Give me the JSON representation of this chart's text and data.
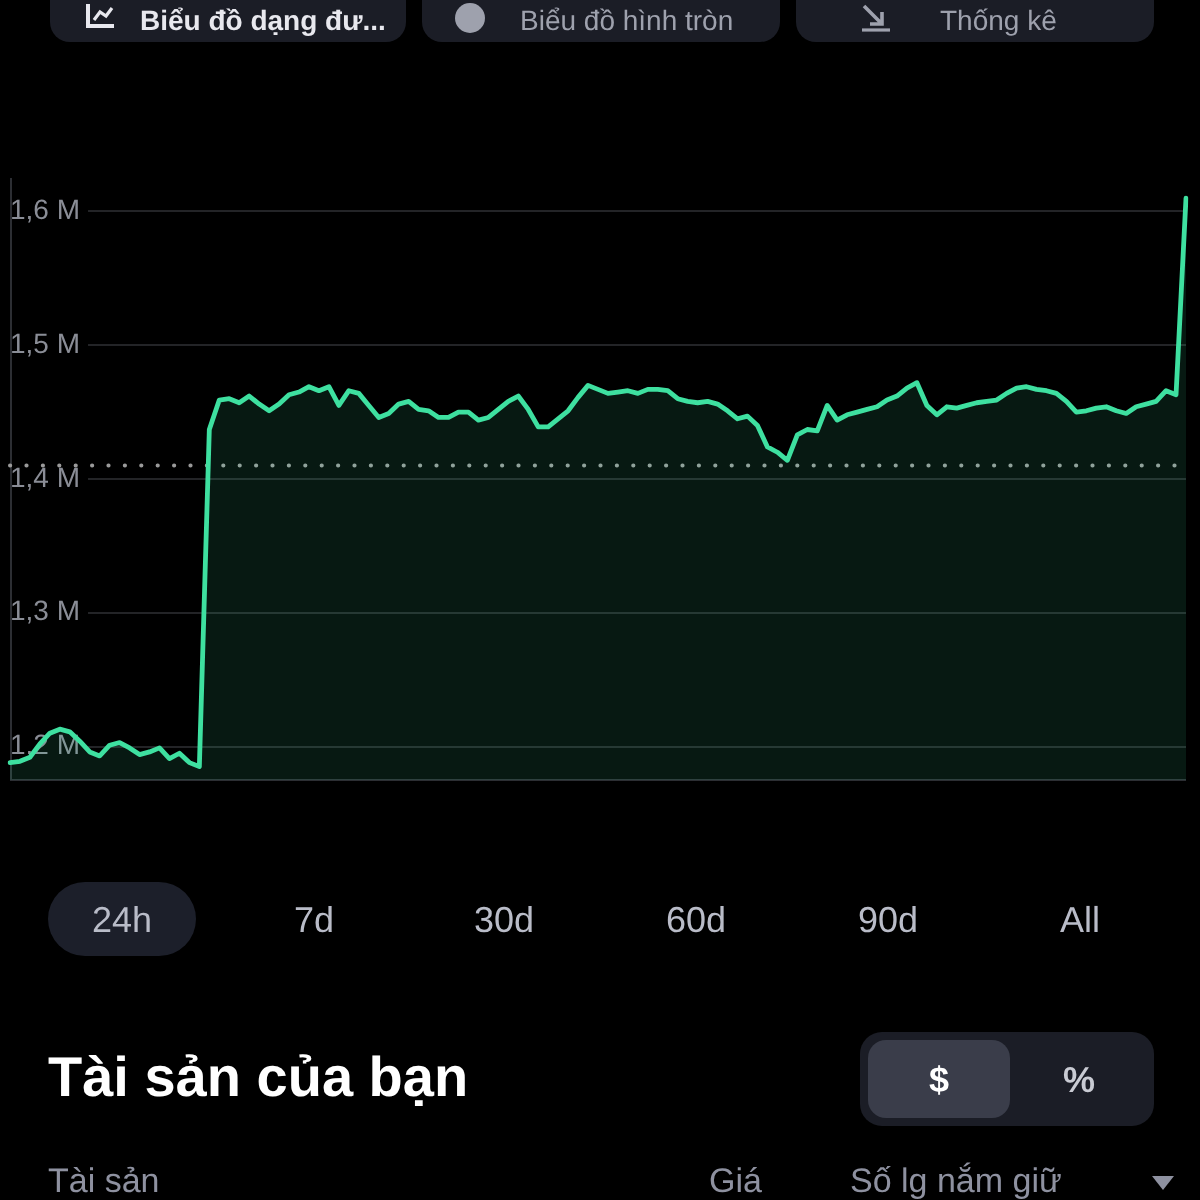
{
  "chart_data": {
    "type": "area",
    "categories": [
      null,
      null,
      null,
      null,
      null,
      null,
      null,
      null,
      null,
      null,
      null,
      null,
      null,
      null,
      null,
      null,
      null,
      null,
      null,
      null,
      null,
      null,
      null,
      null,
      null,
      null,
      null,
      null,
      null,
      null,
      null,
      null,
      null,
      null,
      null,
      null,
      null,
      null,
      null,
      null,
      null,
      null,
      null,
      null,
      null,
      null,
      null,
      null,
      null,
      null,
      null,
      null,
      null,
      null,
      null,
      null,
      null,
      null,
      null,
      null,
      null,
      null,
      null,
      null,
      null,
      null,
      null,
      null,
      null,
      null,
      null,
      null,
      null,
      null,
      null,
      null,
      null,
      null,
      null,
      null,
      null,
      null,
      null,
      null,
      null,
      null,
      null,
      null,
      null,
      null,
      null,
      null,
      null,
      null,
      null,
      null,
      null,
      null,
      null,
      null,
      null,
      null,
      null,
      null,
      null,
      null,
      null,
      null,
      null,
      null,
      null,
      null,
      null,
      null,
      null,
      null,
      null,
      null,
      null
    ],
    "series": [
      {
        "color": "#3ee0a0",
        "values": [
          1.188,
          1.189,
          1.192,
          1.202,
          1.21,
          1.213,
          1.211,
          1.204,
          1.196,
          1.193,
          1.201,
          1.203,
          1.199,
          1.194,
          1.196,
          1.199,
          1.191,
          1.195,
          1.188,
          1.185,
          1.437,
          1.459,
          1.46,
          1.457,
          1.462,
          1.456,
          1.451,
          1.456,
          1.463,
          1.465,
          1.469,
          1.466,
          1.469,
          1.455,
          1.466,
          1.464,
          1.455,
          1.446,
          1.449,
          1.456,
          1.458,
          1.452,
          1.451,
          1.446,
          1.446,
          1.45,
          1.45,
          1.444,
          1.446,
          1.452,
          1.458,
          1.462,
          1.452,
          1.439,
          1.439,
          1.445,
          1.451,
          1.461,
          1.47,
          1.467,
          1.464,
          1.465,
          1.466,
          1.464,
          1.467,
          1.467,
          1.466,
          1.46,
          1.458,
          1.457,
          1.458,
          1.456,
          1.451,
          1.445,
          1.447,
          1.44,
          1.424,
          1.42,
          1.414,
          1.433,
          1.437,
          1.436,
          1.455,
          1.444,
          1.448,
          1.45,
          1.452,
          1.454,
          1.459,
          1.462,
          1.468,
          1.472,
          1.455,
          1.448,
          1.454,
          1.453,
          1.455,
          1.457,
          1.458,
          1.459,
          1.464,
          1.468,
          1.469,
          1.467,
          1.466,
          1.464,
          1.458,
          1.45,
          1.451,
          1.453,
          1.454,
          1.451,
          1.449,
          1.454,
          1.456,
          1.458,
          1.466,
          1.463,
          1.61
        ]
      }
    ],
    "ylim": [
      1.175,
      1.625
    ],
    "yticks": [
      {
        "value": 1.2,
        "label": "1,2 M"
      },
      {
        "value": 1.3,
        "label": "1,3 M"
      },
      {
        "value": 1.4,
        "label": "1,4 M"
      },
      {
        "value": 1.5,
        "label": "1,5 M"
      },
      {
        "value": 1.6,
        "label": "1,6 M"
      }
    ],
    "grid": "y",
    "tick_labels": "y",
    "ref_lines": [
      {
        "axis": "y",
        "value": 1.41,
        "color": "#9a9a9a",
        "line_style": "dotted"
      }
    ],
    "annotations": [
      "Biểu đồ dạng đư...",
      "Biểu đồ hình tròn",
      "Thống kê",
      "24h",
      "7d",
      "30d",
      "60d",
      "90d",
      "All",
      "Tài sản của bạn",
      "$",
      "%",
      "Tài sản",
      "Giá",
      "Số lg nắm giữ"
    ]
  }
}
